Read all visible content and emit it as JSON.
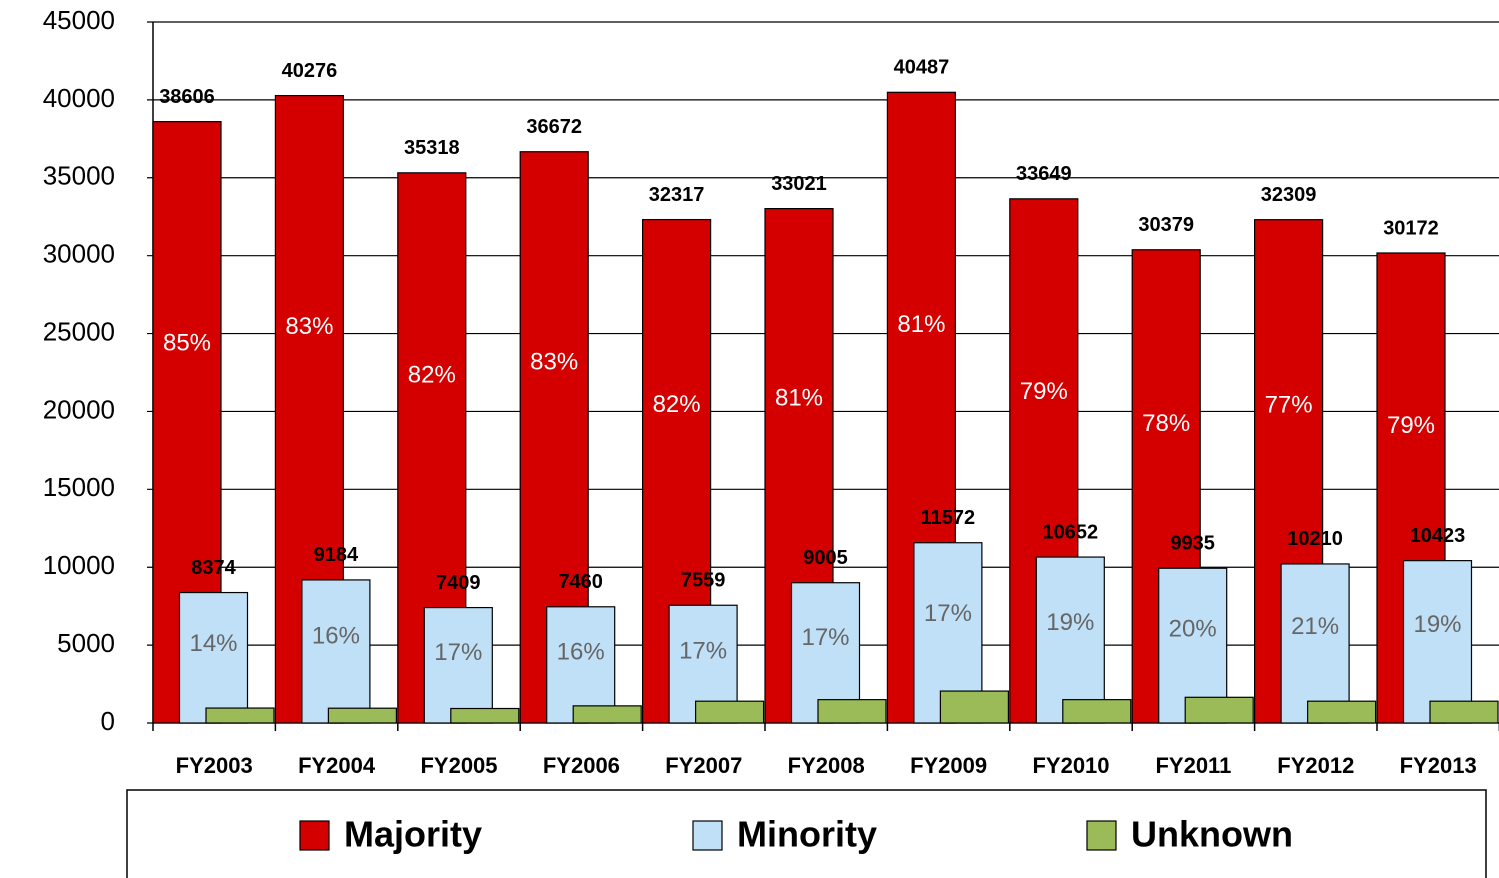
{
  "chart_data": {
    "type": "bar",
    "categories": [
      "FY2003",
      "FY2004",
      "FY2005",
      "FY2006",
      "FY2007",
      "FY2008",
      "FY2009",
      "FY2010",
      "FY2011",
      "FY2012",
      "FY2013"
    ],
    "series": [
      {
        "name": "Majority",
        "color": "#d40000",
        "values": [
          38606,
          40276,
          35318,
          36672,
          32317,
          33021,
          40487,
          33649,
          30379,
          32309,
          30172
        ],
        "share_labels": [
          "85%",
          "83%",
          "82%",
          "83%",
          "82%",
          "81%",
          "81%",
          "79%",
          "78%",
          "77%",
          "79%"
        ]
      },
      {
        "name": "Minority",
        "color": "#bfe0f7",
        "values": [
          8374,
          9184,
          7409,
          7460,
          7559,
          9005,
          11572,
          10652,
          9935,
          10210,
          10423
        ],
        "share_labels": [
          "14%",
          "16%",
          "17%",
          "16%",
          "17%",
          "17%",
          "17%",
          "19%",
          "20%",
          "21%",
          "19%"
        ]
      },
      {
        "name": "Unknown",
        "color": "#9bbb59",
        "values": [
          960,
          950,
          930,
          1100,
          1400,
          1500,
          2050,
          1500,
          1650,
          1400,
          1400
        ]
      }
    ],
    "ylim": [
      0,
      45000
    ],
    "yticks": [
      0,
      5000,
      10000,
      15000,
      20000,
      25000,
      30000,
      35000,
      40000,
      45000
    ],
    "grid": true
  }
}
